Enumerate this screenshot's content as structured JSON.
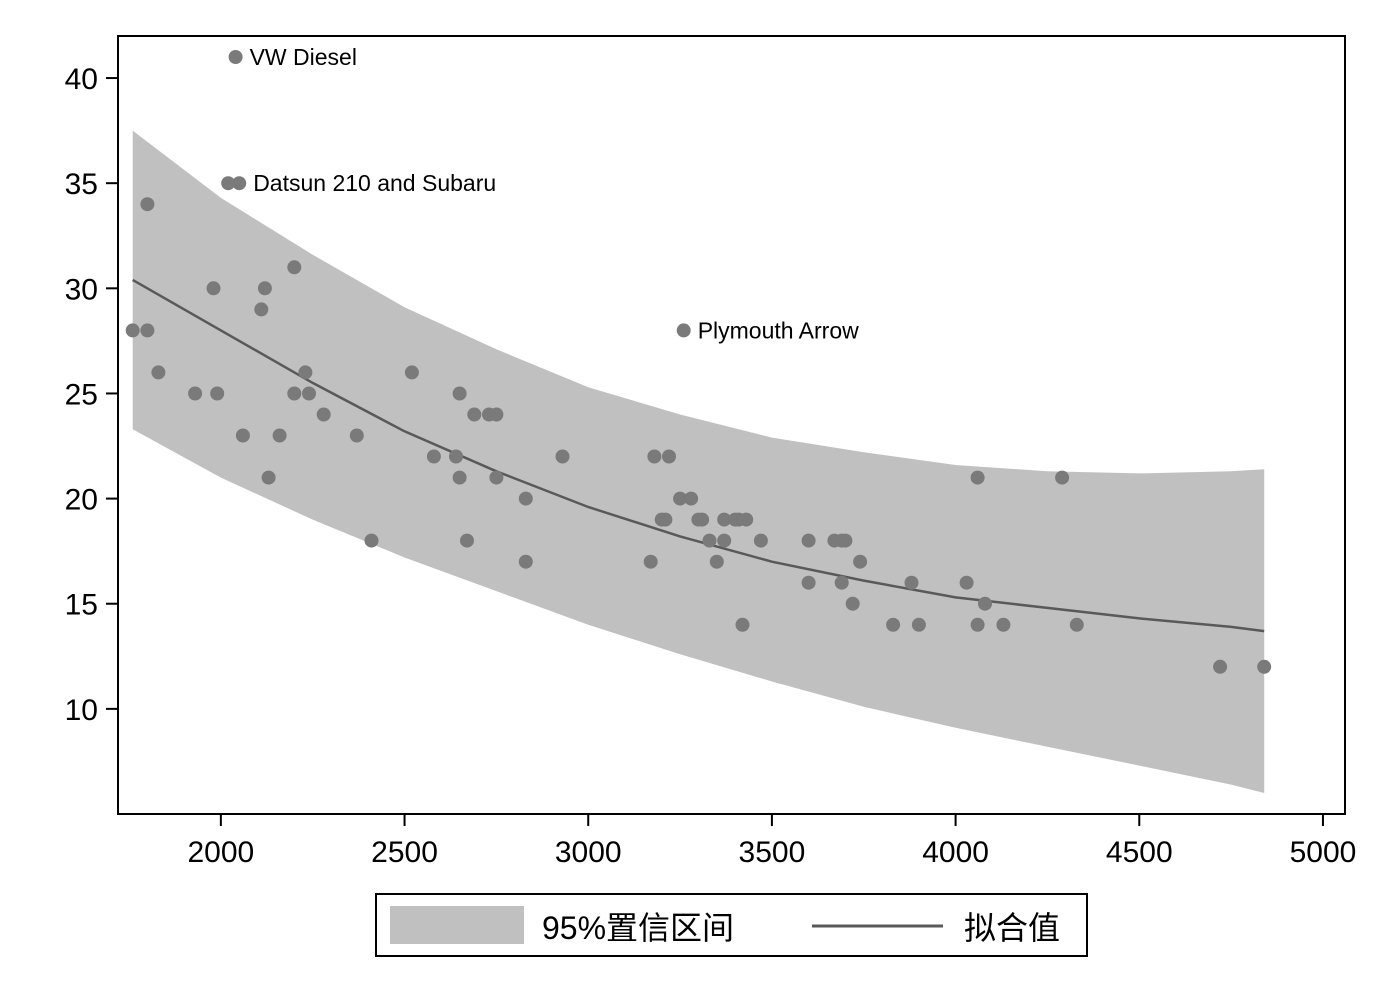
{
  "chart_data": {
    "type": "scatter",
    "title": "",
    "xlabel": "",
    "ylabel": "",
    "xlim": [
      1720,
      5060
    ],
    "ylim": [
      5,
      42
    ],
    "x_ticks": [
      2000,
      2500,
      3000,
      3500,
      4000,
      4500,
      5000
    ],
    "y_ticks": [
      10,
      15,
      20,
      25,
      30,
      35,
      40
    ],
    "grid": false,
    "legend_position": "bottom",
    "colors": {
      "ci_band": "#c0c0c0",
      "fit_line": "#595959",
      "points": "#7a7a7a",
      "axis": "#000000"
    },
    "series": [
      {
        "kind": "ci_band",
        "name": "95%置信区间",
        "x": [
          1760,
          2000,
          2250,
          2500,
          2750,
          3000,
          3250,
          3500,
          3750,
          4000,
          4250,
          4500,
          4750,
          4840
        ],
        "lower": [
          23.3,
          21.0,
          19.0,
          17.2,
          15.6,
          14.0,
          12.6,
          11.3,
          10.1,
          9.1,
          8.2,
          7.3,
          6.4,
          6.0
        ],
        "upper": [
          37.5,
          34.3,
          31.6,
          29.1,
          27.1,
          25.3,
          24.0,
          22.9,
          22.2,
          21.6,
          21.3,
          21.2,
          21.3,
          21.4
        ]
      },
      {
        "kind": "fit_line",
        "name": "拟合值",
        "x": [
          1760,
          2000,
          2250,
          2500,
          2750,
          3000,
          3250,
          3500,
          3750,
          4000,
          4250,
          4500,
          4750,
          4840
        ],
        "y": [
          30.4,
          28.0,
          25.5,
          23.2,
          21.3,
          19.6,
          18.2,
          17.0,
          16.1,
          15.3,
          14.8,
          14.3,
          13.9,
          13.7
        ]
      },
      {
        "kind": "points",
        "points": [
          [
            1760,
            28
          ],
          [
            1800,
            28
          ],
          [
            1800,
            34
          ],
          [
            1830,
            26
          ],
          [
            1930,
            25
          ],
          [
            1980,
            30
          ],
          [
            1990,
            25
          ],
          [
            2020,
            35
          ],
          [
            2040,
            41
          ],
          [
            2050,
            35
          ],
          [
            2060,
            23
          ],
          [
            2110,
            29
          ],
          [
            2120,
            30
          ],
          [
            2130,
            21
          ],
          [
            2160,
            23
          ],
          [
            2200,
            31
          ],
          [
            2200,
            25
          ],
          [
            2230,
            26
          ],
          [
            2240,
            25
          ],
          [
            2280,
            24
          ],
          [
            2370,
            23
          ],
          [
            2410,
            18
          ],
          [
            2520,
            26
          ],
          [
            2580,
            22
          ],
          [
            2640,
            22
          ],
          [
            2650,
            25
          ],
          [
            2650,
            21
          ],
          [
            2670,
            18
          ],
          [
            2690,
            24
          ],
          [
            2730,
            24
          ],
          [
            2750,
            24
          ],
          [
            2750,
            21
          ],
          [
            2830,
            20
          ],
          [
            2830,
            17
          ],
          [
            2930,
            22
          ],
          [
            3170,
            17
          ],
          [
            3180,
            22
          ],
          [
            3200,
            19
          ],
          [
            3210,
            19
          ],
          [
            3220,
            22
          ],
          [
            3250,
            20
          ],
          [
            3260,
            28
          ],
          [
            3280,
            20
          ],
          [
            3300,
            19
          ],
          [
            3310,
            19
          ],
          [
            3330,
            18
          ],
          [
            3350,
            17
          ],
          [
            3370,
            18
          ],
          [
            3370,
            19
          ],
          [
            3400,
            19
          ],
          [
            3410,
            19
          ],
          [
            3420,
            14
          ],
          [
            3430,
            19
          ],
          [
            3470,
            18
          ],
          [
            3600,
            18
          ],
          [
            3600,
            16
          ],
          [
            3670,
            18
          ],
          [
            3690,
            16
          ],
          [
            3690,
            18
          ],
          [
            3700,
            18
          ],
          [
            3720,
            15
          ],
          [
            3740,
            17
          ],
          [
            3830,
            14
          ],
          [
            3880,
            16
          ],
          [
            3900,
            14
          ],
          [
            4030,
            16
          ],
          [
            4060,
            21
          ],
          [
            4060,
            14
          ],
          [
            4080,
            15
          ],
          [
            4130,
            14
          ],
          [
            4290,
            21
          ],
          [
            4330,
            14
          ],
          [
            4720,
            12
          ],
          [
            4840,
            12
          ]
        ]
      }
    ],
    "annotations": [
      {
        "text": "VW Diesel",
        "x": 2040,
        "y": 41
      },
      {
        "text": "Datsun 210 and Subaru",
        "x": 2050,
        "y": 35
      },
      {
        "text": "Plymouth Arrow",
        "x": 3260,
        "y": 28
      }
    ]
  },
  "legend": {
    "items": [
      {
        "label": "95%置信区间",
        "kind": "band"
      },
      {
        "label": "拟合值",
        "kind": "line"
      }
    ]
  }
}
